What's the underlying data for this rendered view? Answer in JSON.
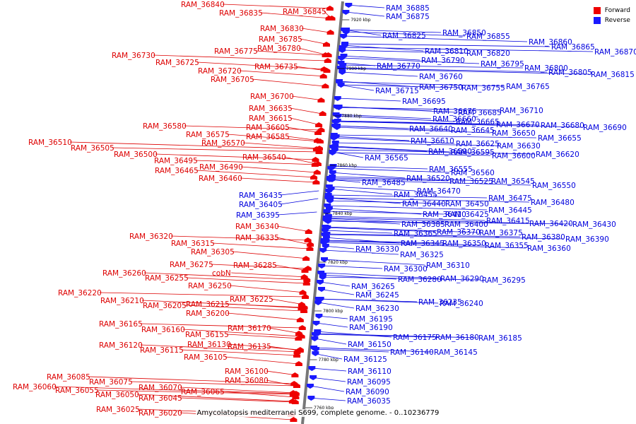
{
  "caption": "Amycolatopsis mediterranei S699, complete genome. - 0..10236779",
  "legend": [
    {
      "label": "Forward",
      "color": "#ee0000"
    },
    {
      "label": "Reverse",
      "color": "#1a1aff"
    }
  ],
  "colors": {
    "forward": "#ee0000",
    "reverse": "#1a1aff",
    "forward_text": "#dd0000",
    "reverse_text": "#0000dd"
  },
  "tick_labels": [
    "7920 kbp",
    "7900 kbp",
    "7880 kbp",
    "7860 kbp",
    "7840 kbp",
    "7820 kbp",
    "7800 kbp",
    "7780 kbp",
    "7760 kbp"
  ],
  "forward_genes": [
    "RAM_36840",
    "RAM_36835",
    "RAM_36845",
    "RAM_36830",
    "RAM_36785",
    "RAM_36780",
    "RAM_36775",
    "RAM_36730",
    "RAM_36725",
    "RAM_36735",
    "RAM_36720",
    "RAM_36705",
    "RAM_36700",
    "RAM_36635",
    "RAM_36615",
    "RAM_36580",
    "RAM_36605",
    "RAM_36575",
    "RAM_36585",
    "RAM_36570",
    "RAM_36510",
    "RAM_36505",
    "RAM_36500",
    "RAM_36540",
    "RAM_36495",
    "RAM_36490",
    "RAM_36465",
    "RAM_36460",
    "RAM_36340",
    "RAM_36335",
    "RAM_36320",
    "RAM_36315",
    "RAM_36305",
    "RAM_36275",
    "RAM_36285",
    "RAM_36260",
    "cobN",
    "RAM_36255",
    "RAM_36250",
    "RAM_36220",
    "RAM_36225",
    "RAM_36210",
    "RAM_36215",
    "RAM_36205",
    "RAM_36200",
    "RAM_36165",
    "RAM_36170",
    "RAM_36160",
    "RAM_36155",
    "RAM_36130",
    "RAM_36120",
    "RAM_36135",
    "RAM_36115",
    "RAM_36105",
    "RAM_36100",
    "RAM_36080",
    "RAM_36085",
    "RAM_36075",
    "RAM_36070",
    "RAM_36060",
    "RAM_36055",
    "RAM_36065",
    "RAM_36050",
    "RAM_36045",
    "RAM_36025",
    "RAM_36020"
  ],
  "reverse_genes": [
    "RAM_36885",
    "RAM_36875",
    "RAM_36825",
    "RAM_36850",
    "RAM_36855",
    "RAM_36860",
    "RAM_36865",
    "RAM_36870",
    "RAM_36810",
    "RAM_36820",
    "RAM_36790",
    "RAM_36795",
    "RAM_36800",
    "RAM_36805",
    "RAM_36815",
    "RAM_36770",
    "RAM_36760",
    "RAM_36750",
    "RAM_36755",
    "RAM_36765",
    "RAM_36715",
    "RAM_36695",
    "RAM_36675",
    "RAM_36685",
    "RAM_36710",
    "RAM_36660",
    "RAM_36665",
    "RAM_36670",
    "RAM_36680",
    "RAM_36690",
    "RAM_36640",
    "RAM_36645",
    "RAM_36650",
    "RAM_36655",
    "RAM_36610",
    "RAM_36625",
    "RAM_36630",
    "RAM_36590",
    "RAM_36595",
    "RAM_36600",
    "RAM_36620",
    "RAM_36565",
    "RAM_36555",
    "RAM_36560",
    "RAM_36520",
    "RAM_36525",
    "RAM_36545",
    "RAM_36550",
    "RAM_36485",
    "RAM_36470",
    "RAM_36455",
    "RAM_36475",
    "RAM_36480",
    "RAM_36440",
    "RAM_36450",
    "RAM_36445",
    "RAM_36410",
    "RAM_36425",
    "RAM_36415",
    "RAM_36420",
    "RAM_36430",
    "RAM_36385",
    "RAM_36400",
    "RAM_36365",
    "RAM_36370",
    "RAM_36375",
    "RAM_36380",
    "RAM_36390",
    "RAM_36345",
    "RAM_36350",
    "RAM_36355",
    "RAM_36360",
    "RAM_36330",
    "RAM_36325",
    "RAM_36310",
    "RAM_36300",
    "RAM_36280",
    "RAM_36290",
    "RAM_36295",
    "RAM_36265",
    "RAM_36245",
    "RAM_36235",
    "RAM_36240",
    "RAM_36230",
    "RAM_36195",
    "RAM_36190",
    "RAM_36175",
    "RAM_36180",
    "RAM_36185",
    "RAM_36150",
    "RAM_36140",
    "RAM_36145",
    "RAM_36125",
    "RAM_36110",
    "RAM_36095",
    "RAM_36090",
    "RAM_36035",
    "RAM_36435",
    "RAM_36405",
    "RAM_36395"
  ]
}
